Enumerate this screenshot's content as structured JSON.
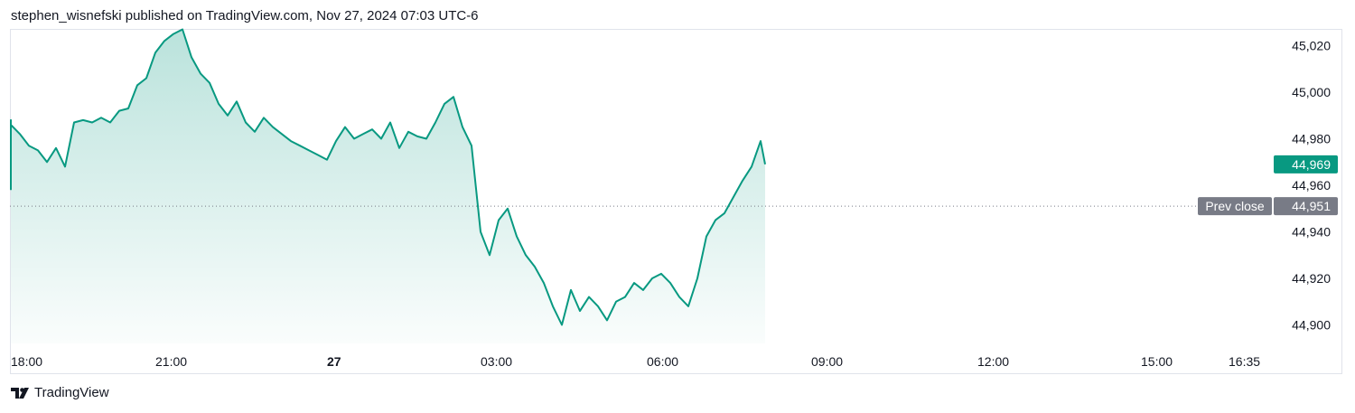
{
  "header": {
    "publisher_text": "stephen_wisnefski published on TradingView.com, Nov 27, 2024 07:03 UTC-6"
  },
  "footer": {
    "brand": "TradingView"
  },
  "colors": {
    "line": "#089981",
    "price_badge": "#089981",
    "prev_close_badge": "#787b86"
  },
  "chart_data": {
    "type": "area",
    "title": "",
    "xlabel": "",
    "ylabel": "",
    "x_tick_labels": [
      "18:00",
      "21:00",
      "27",
      "03:00",
      "06:00",
      "09:00",
      "12:00",
      "15:00",
      "16:35"
    ],
    "y_tick_labels": [
      "45,020",
      "45,000",
      "44,980",
      "44,960",
      "44,940",
      "44,920",
      "44,900"
    ],
    "y_ticks": [
      45020,
      45000,
      44980,
      44960,
      44940,
      44920,
      44900
    ],
    "ylim": [
      44894,
      45030
    ],
    "last_price": 44969,
    "last_price_label": "44,969",
    "prev_close": 44951,
    "prev_close_label": "44,951",
    "prev_close_text": "Prev close",
    "grid": false,
    "series": [
      {
        "x": [
          "17:00",
          "17:10",
          "17:20",
          "17:30",
          "17:40",
          "17:50",
          "18:00",
          "18:10",
          "18:20",
          "18:30",
          "18:40",
          "18:50",
          "19:00",
          "19:10",
          "19:20",
          "19:30",
          "19:40",
          "19:50",
          "20:00",
          "20:10",
          "20:20",
          "20:30",
          "20:40",
          "20:50",
          "21:00",
          "21:10",
          "21:20",
          "21:30",
          "21:40",
          "21:50",
          "22:00",
          "22:10",
          "22:20",
          "22:30",
          "22:40",
          "22:50",
          "23:00",
          "23:10",
          "23:20",
          "23:30",
          "23:40",
          "23:50",
          "00:00",
          "00:10",
          "00:20",
          "00:30",
          "00:40",
          "00:50",
          "01:00",
          "01:10",
          "01:20",
          "01:30",
          "01:40",
          "01:50",
          "02:00",
          "02:10",
          "02:20",
          "02:30",
          "02:40",
          "02:50",
          "03:00",
          "03:10",
          "03:20",
          "03:30",
          "03:40",
          "03:50",
          "04:00",
          "04:10",
          "04:20",
          "04:30",
          "04:40",
          "04:50",
          "05:00",
          "05:10",
          "05:20",
          "05:30",
          "05:40",
          "05:50",
          "06:00",
          "06:10",
          "06:20",
          "06:30",
          "06:40",
          "06:50",
          "07:00",
          "07:10",
          "07:20",
          "07:30",
          "07:40",
          "07:50",
          "07:55"
        ],
        "values": [
          44958,
          44985,
          44986,
          44979,
          44988,
          44982,
          44986,
          44982,
          44977,
          44975,
          44970,
          44976,
          44968,
          44987,
          44988,
          44987,
          44989,
          44987,
          44992,
          44993,
          45003,
          45006,
          45017,
          45022,
          45025,
          45027,
          45015,
          45008,
          45004,
          44995,
          44990,
          44996,
          44987,
          44983,
          44989,
          44985,
          44982,
          44979,
          44977,
          44975,
          44973,
          44971,
          44979,
          44985,
          44980,
          44982,
          44984,
          44980,
          44987,
          44976,
          44983,
          44981,
          44980,
          44987,
          44995,
          44998,
          44985,
          44977,
          44940,
          44930,
          44945,
          44950,
          44938,
          44930,
          44925,
          44918,
          44908,
          44900,
          44915,
          44906,
          44912,
          44908,
          44902,
          44910,
          44912,
          44918,
          44915,
          44920,
          44922,
          44918,
          44912,
          44908,
          44920,
          44938,
          44945,
          44948,
          44955,
          44962,
          44968,
          44979,
          44969
        ]
      }
    ]
  }
}
